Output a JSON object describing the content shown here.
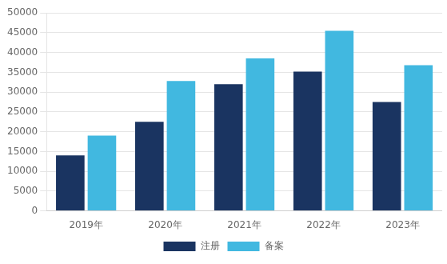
{
  "chart_data": {
    "type": "bar",
    "categories": [
      "2019年",
      "2020年",
      "2021年",
      "2022年",
      "2023年"
    ],
    "series": [
      {
        "name": "注册",
        "values": [
          14000,
          22500,
          32000,
          35200,
          27500
        ],
        "color": "#1a3461"
      },
      {
        "name": "备案",
        "values": [
          19000,
          32800,
          38500,
          45500,
          36800
        ],
        "color": "#41b8e0"
      }
    ],
    "ylim": [
      0,
      50000
    ],
    "yticks": [
      0,
      5000,
      10000,
      15000,
      20000,
      25000,
      30000,
      35000,
      40000,
      45000,
      50000
    ],
    "grid": true,
    "legend": "bottom"
  }
}
